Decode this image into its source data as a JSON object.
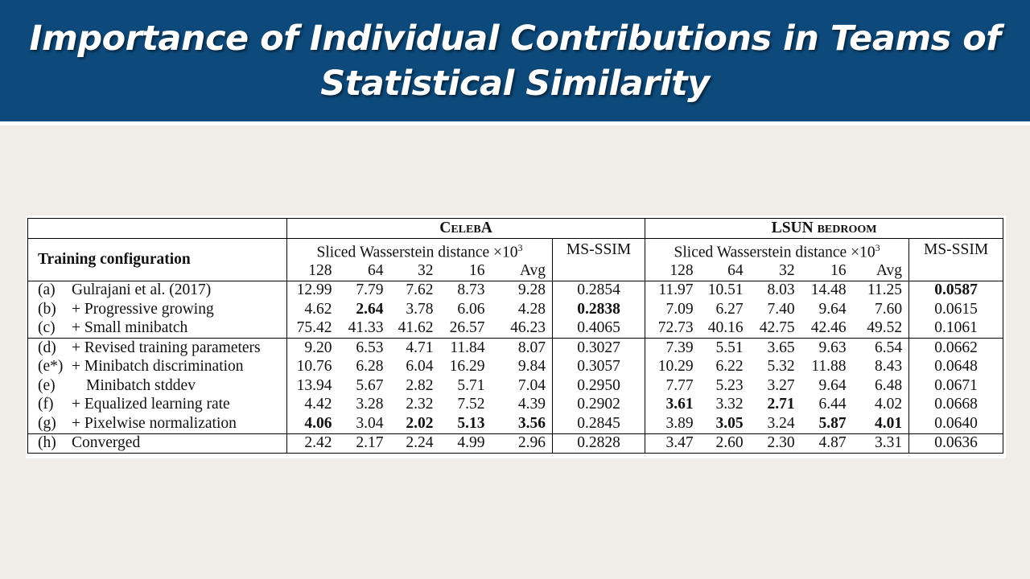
{
  "title": "Importance of Individual Contributions in Teams of Statistical Similarity",
  "table": {
    "header": {
      "training_configuration": "Training configuration",
      "celeba": "CelebA",
      "lsun": "LSUN bedroom",
      "swd_label": "Sliced Wasserstein distance ×10",
      "swd_exp": "3",
      "msssim": "MS-SSIM",
      "cols": [
        "128",
        "64",
        "32",
        "16",
        "Avg"
      ]
    },
    "rows": [
      {
        "id": "(a)",
        "name": "Gulrajani et al. (2017)",
        "celeba": [
          "12.99",
          "7.79",
          "7.62",
          "8.73",
          "9.28"
        ],
        "celeba_msssim": "0.2854",
        "lsun": [
          "11.97",
          "10.51",
          "8.03",
          "14.48",
          "11.25"
        ],
        "lsun_msssim": "0.0587"
      },
      {
        "id": "(b)",
        "name": "+ Progressive growing",
        "celeba": [
          "4.62",
          "2.64",
          "3.78",
          "6.06",
          "4.28"
        ],
        "celeba_msssim": "0.2838",
        "lsun": [
          "7.09",
          "6.27",
          "7.40",
          "9.64",
          "7.60"
        ],
        "lsun_msssim": "0.0615"
      },
      {
        "id": "(c)",
        "name": "+ Small minibatch",
        "celeba": [
          "75.42",
          "41.33",
          "41.62",
          "26.57",
          "46.23"
        ],
        "celeba_msssim": "0.4065",
        "lsun": [
          "72.73",
          "40.16",
          "42.75",
          "42.46",
          "49.52"
        ],
        "lsun_msssim": "0.1061"
      },
      {
        "id": "(d)",
        "name": "+ Revised training parameters",
        "celeba": [
          "9.20",
          "6.53",
          "4.71",
          "11.84",
          "8.07"
        ],
        "celeba_msssim": "0.3027",
        "lsun": [
          "7.39",
          "5.51",
          "3.65",
          "9.63",
          "6.54"
        ],
        "lsun_msssim": "0.0662"
      },
      {
        "id": "(e*)",
        "name": "+ Minibatch discrimination",
        "celeba": [
          "10.76",
          "6.28",
          "6.04",
          "16.29",
          "9.84"
        ],
        "celeba_msssim": "0.3057",
        "lsun": [
          "10.29",
          "6.22",
          "5.32",
          "11.88",
          "8.43"
        ],
        "lsun_msssim": "0.0648"
      },
      {
        "id": "(e)",
        "name": "Minibatch stddev",
        "celeba": [
          "13.94",
          "5.67",
          "2.82",
          "5.71",
          "7.04"
        ],
        "celeba_msssim": "0.2950",
        "lsun": [
          "7.77",
          "5.23",
          "3.27",
          "9.64",
          "6.48"
        ],
        "lsun_msssim": "0.0671"
      },
      {
        "id": "(f)",
        "name": "+ Equalized learning rate",
        "celeba": [
          "4.42",
          "3.28",
          "2.32",
          "7.52",
          "4.39"
        ],
        "celeba_msssim": "0.2902",
        "lsun": [
          "3.61",
          "3.32",
          "2.71",
          "6.44",
          "4.02"
        ],
        "lsun_msssim": "0.0668"
      },
      {
        "id": "(g)",
        "name": "+ Pixelwise normalization",
        "celeba": [
          "4.06",
          "3.04",
          "2.02",
          "5.13",
          "3.56"
        ],
        "celeba_msssim": "0.2845",
        "lsun": [
          "3.89",
          "3.05",
          "3.24",
          "5.87",
          "4.01"
        ],
        "lsun_msssim": "0.0640"
      },
      {
        "id": "(h)",
        "name": "Converged",
        "celeba": [
          "2.42",
          "2.17",
          "2.24",
          "4.99",
          "2.96"
        ],
        "celeba_msssim": "0.2828",
        "lsun": [
          "3.47",
          "2.60",
          "2.30",
          "4.87",
          "3.31"
        ],
        "lsun_msssim": "0.0636"
      }
    ]
  }
}
